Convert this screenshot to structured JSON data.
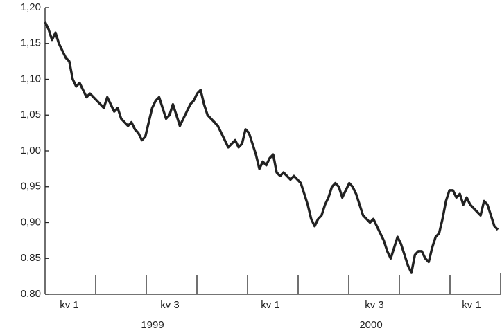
{
  "chart_data": {
    "type": "line",
    "values": [
      1.18,
      1.17,
      1.155,
      1.165,
      1.15,
      1.14,
      1.13,
      1.125,
      1.1,
      1.09,
      1.095,
      1.085,
      1.075,
      1.08,
      1.075,
      1.07,
      1.065,
      1.06,
      1.075,
      1.065,
      1.055,
      1.06,
      1.045,
      1.04,
      1.035,
      1.04,
      1.03,
      1.025,
      1.015,
      1.02,
      1.04,
      1.06,
      1.07,
      1.075,
      1.06,
      1.045,
      1.05,
      1.065,
      1.05,
      1.035,
      1.045,
      1.055,
      1.065,
      1.07,
      1.08,
      1.085,
      1.065,
      1.05,
      1.045,
      1.04,
      1.035,
      1.025,
      1.015,
      1.005,
      1.01,
      1.015,
      1.005,
      1.01,
      1.03,
      1.025,
      1.01,
      0.995,
      0.975,
      0.985,
      0.98,
      0.99,
      0.995,
      0.97,
      0.965,
      0.97,
      0.965,
      0.96,
      0.965,
      0.96,
      0.955,
      0.94,
      0.925,
      0.905,
      0.895,
      0.905,
      0.91,
      0.925,
      0.935,
      0.95,
      0.955,
      0.95,
      0.935,
      0.945,
      0.955,
      0.95,
      0.94,
      0.925,
      0.91,
      0.905,
      0.9,
      0.905,
      0.895,
      0.885,
      0.875,
      0.86,
      0.85,
      0.865,
      0.88,
      0.87,
      0.855,
      0.84,
      0.83,
      0.855,
      0.86,
      0.86,
      0.85,
      0.845,
      0.865,
      0.88,
      0.885,
      0.905,
      0.93,
      0.945,
      0.945,
      0.935,
      0.94,
      0.925,
      0.935,
      0.925,
      0.92,
      0.915,
      0.91,
      0.93,
      0.925,
      0.91,
      0.895,
      0.89
    ],
    "color": "#222222",
    "ylim": [
      0.8,
      1.2
    ],
    "yticks": [
      {
        "value": 0.8,
        "label": "0,80"
      },
      {
        "value": 0.85,
        "label": "0,85"
      },
      {
        "value": 0.9,
        "label": "0,90"
      },
      {
        "value": 0.95,
        "label": "0,95"
      },
      {
        "value": 1.0,
        "label": "1,00"
      },
      {
        "value": 1.05,
        "label": "1,05"
      },
      {
        "value": 1.1,
        "label": "1,10"
      },
      {
        "value": 1.15,
        "label": "1,15"
      },
      {
        "value": 1.2,
        "label": "1,20"
      }
    ],
    "quarter_labels": [
      "kv 1",
      "kv 3",
      "kv 1",
      "kv 3",
      "kv 1"
    ],
    "year_labels": [
      "1999",
      "2000"
    ]
  }
}
